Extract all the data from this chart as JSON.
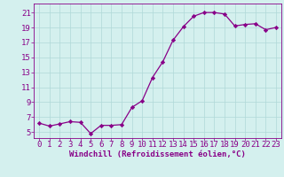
{
  "x": [
    0,
    1,
    2,
    3,
    4,
    5,
    6,
    7,
    8,
    9,
    10,
    11,
    12,
    13,
    14,
    15,
    16,
    17,
    18,
    19,
    20,
    21,
    22,
    23
  ],
  "y": [
    6.2,
    5.8,
    6.1,
    6.4,
    6.3,
    4.8,
    5.9,
    5.9,
    6.0,
    8.3,
    9.2,
    12.3,
    14.4,
    17.3,
    19.1,
    20.5,
    21.0,
    21.0,
    20.8,
    19.2,
    19.4,
    19.5,
    18.7,
    19.0
  ],
  "xlabel": "Windchill (Refroidissement éolien,°C)",
  "ylabel": "",
  "xlim": [
    -0.5,
    23.5
  ],
  "ylim": [
    4.2,
    22.2
  ],
  "yticks": [
    5,
    7,
    9,
    11,
    13,
    15,
    17,
    19,
    21
  ],
  "xticks": [
    0,
    1,
    2,
    3,
    4,
    5,
    6,
    7,
    8,
    9,
    10,
    11,
    12,
    13,
    14,
    15,
    16,
    17,
    18,
    19,
    20,
    21,
    22,
    23
  ],
  "line_color": "#880088",
  "marker": "D",
  "marker_size": 2.2,
  "bg_color": "#d4f0ee",
  "grid_color": "#b0d8d8",
  "tick_label_color": "#880088",
  "xlabel_color": "#880088",
  "xlabel_fontsize": 6.5,
  "tick_fontsize": 6.5,
  "linewidth": 0.9
}
